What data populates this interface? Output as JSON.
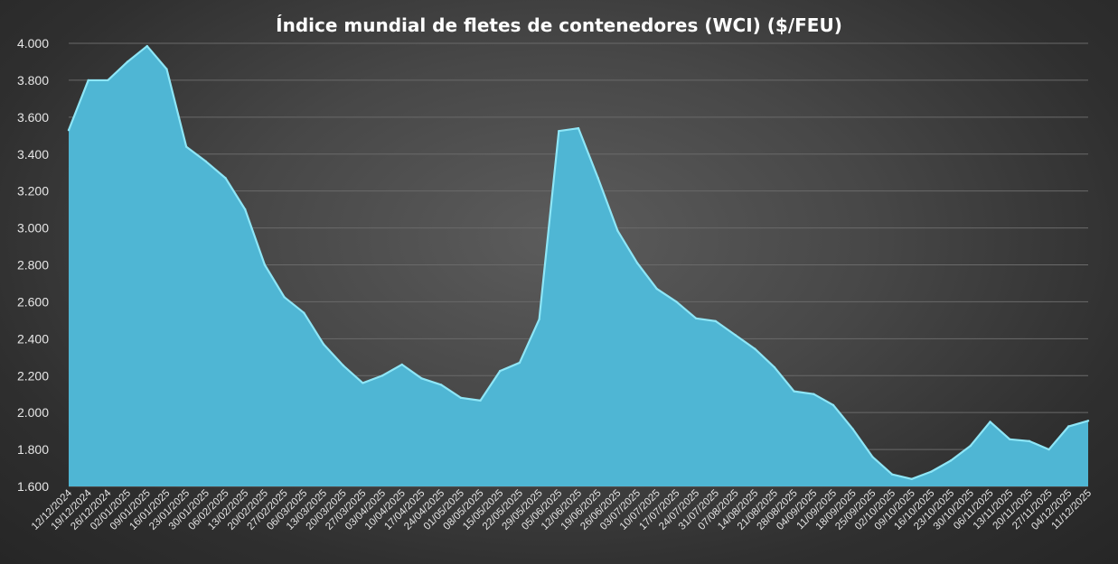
{
  "chart_data": {
    "type": "area",
    "title": "Índice mundial de fletes de contenedores (WCI) ($/FEU)",
    "xlabel": "",
    "ylabel": "",
    "ylim": [
      1600,
      4000
    ],
    "yticks": [
      1600,
      1800,
      2000,
      2200,
      2400,
      2600,
      2800,
      3000,
      3200,
      3400,
      3600,
      3800,
      4000
    ],
    "ytick_labels": [
      "1.600",
      "1.800",
      "2.000",
      "2.200",
      "2.400",
      "2.600",
      "2.800",
      "3.000",
      "3.200",
      "3.400",
      "3.600",
      "3.800",
      "4.000"
    ],
    "grid": true,
    "legend": "none",
    "colors": {
      "area_fill": "#4fb6d4",
      "area_line": "#8ee6f7",
      "grid": "#6a6a6a",
      "text": "#e6e6e6"
    },
    "x": [
      "12/12/2024",
      "19/12/2024",
      "26/12/2024",
      "02/01/2025",
      "09/01/2025",
      "16/01/2025",
      "23/01/2025",
      "30/01/2025",
      "06/02/2025",
      "13/02/2025",
      "20/02/2025",
      "27/02/2025",
      "06/03/2025",
      "13/03/2025",
      "20/03/2025",
      "27/03/2025",
      "03/04/2025",
      "10/04/2025",
      "17/04/2025",
      "24/04/2025",
      "01/05/2025",
      "08/05/2025",
      "15/05/2025",
      "22/05/2025",
      "29/05/2025",
      "05/06/2025",
      "12/06/2025",
      "19/06/2025",
      "26/06/2025",
      "03/07/2025",
      "10/07/2025",
      "17/07/2025",
      "24/07/2025",
      "31/07/2025",
      "07/08/2025",
      "14/08/2025",
      "21/08/2025",
      "28/08/2025",
      "04/09/2025",
      "11/09/2025",
      "18/09/2025",
      "25/09/2025",
      "02/10/2025",
      "09/10/2025",
      "16/10/2025",
      "23/10/2025",
      "30/10/2025",
      "06/11/2025",
      "13/11/2025",
      "20/11/2025",
      "27/11/2025",
      "04/12/2025",
      "11/12/2025"
    ],
    "series": [
      {
        "values": [
          3530,
          3800,
          3800,
          3900,
          3985,
          3860,
          3440,
          3360,
          3270,
          3100,
          2800,
          2625,
          2540,
          2370,
          2255,
          2160,
          2200,
          2260,
          2185,
          2150,
          2080,
          2065,
          2225,
          2270,
          2505,
          3525,
          3540,
          3270,
          2985,
          2810,
          2670,
          2600,
          2510,
          2495,
          2420,
          2345,
          2245,
          2115,
          2100,
          2040,
          1910,
          1760,
          1665,
          1640,
          1680,
          1740,
          1820,
          1950,
          1855,
          1845,
          1800,
          1925,
          1955
        ]
      }
    ]
  }
}
